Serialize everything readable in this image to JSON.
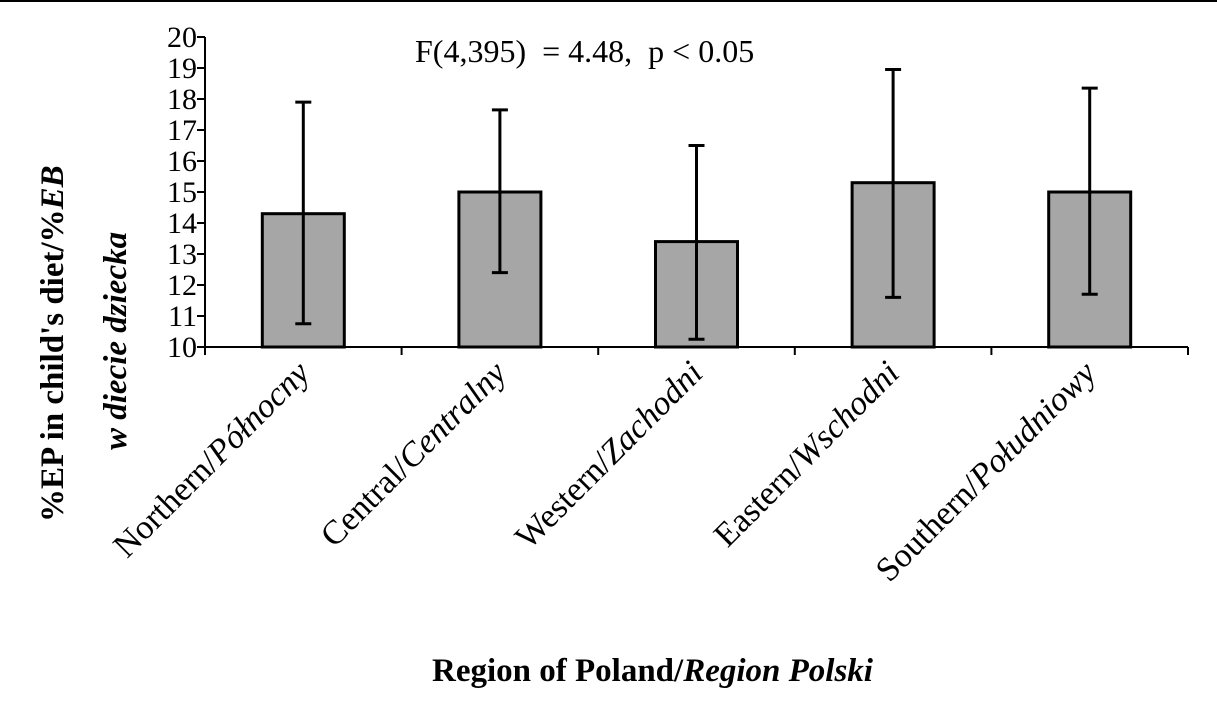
{
  "chart_data": {
    "type": "bar",
    "categories": [
      {
        "en": "Northern/",
        "pl": "Północny"
      },
      {
        "en": "Central/",
        "pl": "Centralny"
      },
      {
        "en": "Western/",
        "pl": "Zachodni"
      },
      {
        "en": "Eastern/",
        "pl": "Wschodni"
      },
      {
        "en": "Southern/",
        "pl": "Południowy"
      }
    ],
    "values": [
      14.3,
      15.0,
      13.4,
      15.3,
      15.0
    ],
    "error_upper": [
      17.9,
      17.65,
      16.5,
      18.95,
      18.35
    ],
    "error_lower": [
      10.75,
      12.4,
      10.25,
      11.6,
      11.7
    ],
    "ylim": [
      10,
      20
    ],
    "yticks": [
      "10",
      "11",
      "12",
      "13",
      "14",
      "15",
      "16",
      "17",
      "18",
      "19",
      "20"
    ],
    "annotation": "F(4,395)  = 4.48,  p < 0.05",
    "ylabel": {
      "line1": "%EP in child's diet/%",
      "line1_italic": "EB",
      "line2": "w diecie dziecka"
    },
    "xlabel": {
      "en": "Region of Poland/",
      "pl": "Region Polski"
    },
    "bar_color": "#a6a6a6",
    "grid": false,
    "legend": "none"
  }
}
